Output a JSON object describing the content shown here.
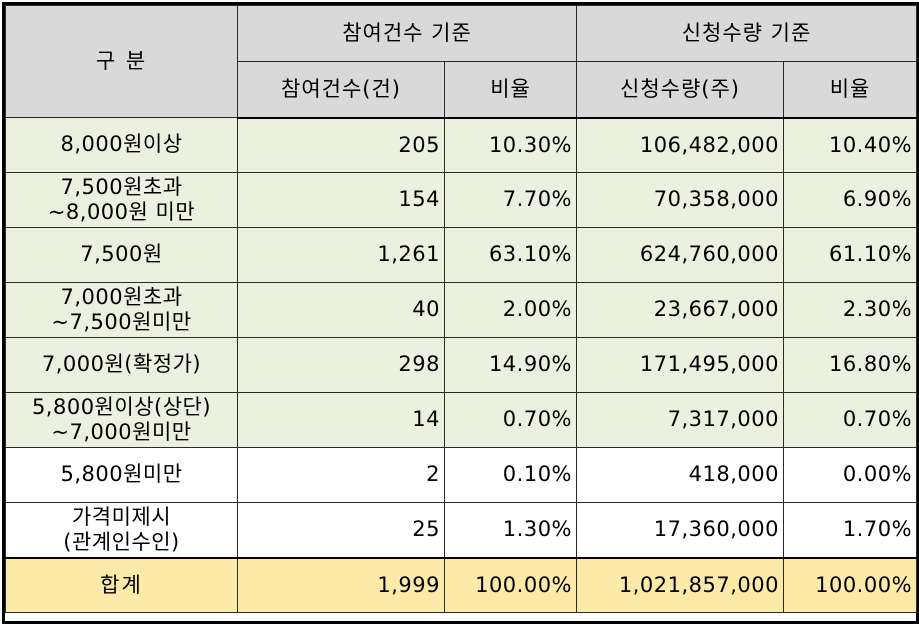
{
  "header": {
    "category": "구 분",
    "group_participants": "참여건수 기준",
    "group_quantity": "신청수량 기준",
    "col_participants": "참여건수(건)",
    "col_participants_ratio": "비율",
    "col_quantity": "신청수량(주)",
    "col_quantity_ratio": "비율"
  },
  "rows": [
    {
      "label": "8,000원이상",
      "label2": "",
      "count": "205",
      "count_ratio": "10.30%",
      "qty": "106,482,000",
      "qty_ratio": "10.40%"
    },
    {
      "label": "7,500원초과",
      "label2": "~8,000원 미만",
      "count": "154",
      "count_ratio": "7.70%",
      "qty": "70,358,000",
      "qty_ratio": "6.90%"
    },
    {
      "label": "7,500원",
      "label2": "",
      "count": "1,261",
      "count_ratio": "63.10%",
      "qty": "624,760,000",
      "qty_ratio": "61.10%"
    },
    {
      "label": "7,000원초과",
      "label2": "~7,500원미만",
      "count": "40",
      "count_ratio": "2.00%",
      "qty": "23,667,000",
      "qty_ratio": "2.30%"
    },
    {
      "label": "7,000원(확정가)",
      "label2": "",
      "count": "298",
      "count_ratio": "14.90%",
      "qty": "171,495,000",
      "qty_ratio": "16.80%"
    },
    {
      "label": "5,800원이상(상단)",
      "label2": "~7,000원미만",
      "count": "14",
      "count_ratio": "0.70%",
      "qty": "7,317,000",
      "qty_ratio": "0.70%"
    },
    {
      "label": "5,800원미만",
      "label2": "",
      "count": "2",
      "count_ratio": "0.10%",
      "qty": "418,000",
      "qty_ratio": "0.00%"
    },
    {
      "label": "가격미제시",
      "label2": "(관계인수인)",
      "count": "25",
      "count_ratio": "1.30%",
      "qty": "17,360,000",
      "qty_ratio": "1.70%"
    }
  ],
  "total": {
    "label": "합계",
    "count": "1,999",
    "count_ratio": "100.00%",
    "qty": "1,021,857,000",
    "qty_ratio": "100.00%"
  },
  "colors": {
    "header_bg": "#d9d9d9",
    "row_green": "#ebf1de",
    "row_white": "#ffffff",
    "total_bg": "#fdeaa8"
  }
}
